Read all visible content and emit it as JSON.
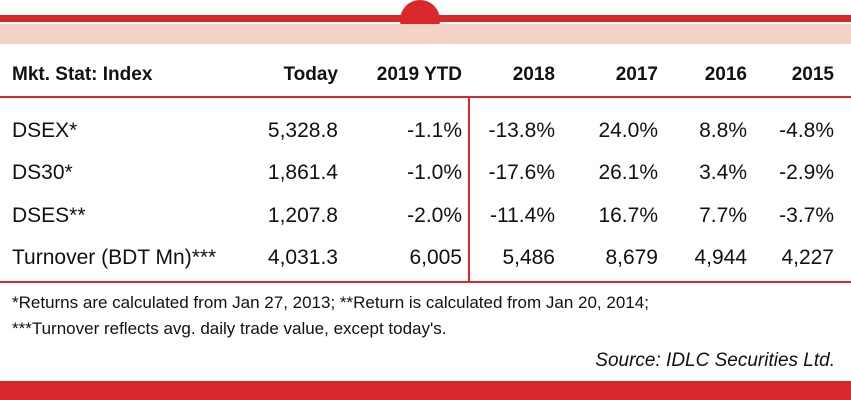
{
  "table": {
    "headers": [
      "Mkt. Stat: Index",
      "Today",
      "2019 YTD",
      "2018",
      "2017",
      "2016",
      "2015"
    ],
    "rows": [
      [
        "DSEX*",
        "5,328.8",
        "-1.1%",
        "-13.8%",
        "24.0%",
        "8.8%",
        "-4.8%"
      ],
      [
        "DS30*",
        "1,861.4",
        "-1.0%",
        "-17.6%",
        "26.1%",
        "3.4%",
        "-2.9%"
      ],
      [
        "DSES**",
        "1,207.8",
        "-2.0%",
        "-11.4%",
        "16.7%",
        "7.7%",
        "-3.7%"
      ],
      [
        "Turnover (BDT Mn)***",
        "4,031.3",
        "6,005",
        "5,486",
        "8,679",
        "4,944",
        "4,227"
      ]
    ]
  },
  "notes": {
    "line1": "*Returns are calculated from Jan 27, 2013; **Return is calculated from Jan 20, 2014;",
    "line2": "***Turnover reflects avg. daily trade value, except today's."
  },
  "source": "Source: IDLC Securities Ltd.",
  "colors": {
    "accent": "#d8282c",
    "band": "#f6d3c8",
    "text": "#111111"
  }
}
